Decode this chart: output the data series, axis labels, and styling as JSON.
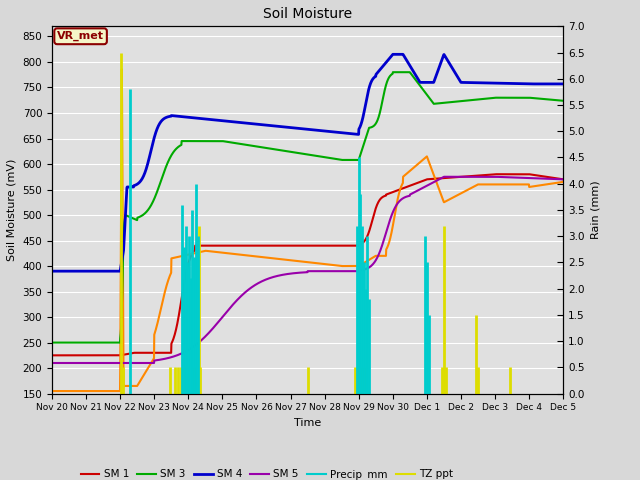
{
  "title": "Soil Moisture",
  "xlabel": "Time",
  "ylabel_left": "Soil Moisture (mV)",
  "ylabel_right": "Rain (mm)",
  "ylim_left": [
    150,
    870
  ],
  "ylim_right": [
    0.0,
    7.0
  ],
  "yticks_left": [
    150,
    200,
    250,
    300,
    350,
    400,
    450,
    500,
    550,
    600,
    650,
    700,
    750,
    800,
    850
  ],
  "yticks_right": [
    0.0,
    0.5,
    1.0,
    1.5,
    2.0,
    2.5,
    3.0,
    3.5,
    4.0,
    4.5,
    5.0,
    5.5,
    6.0,
    6.5,
    7.0
  ],
  "xtick_labels": [
    "Nov 20",
    "Nov 21",
    "Nov 22",
    "Nov 23",
    "Nov 24",
    "Nov 25",
    "Nov 26",
    "Nov 27",
    "Nov 28",
    "Nov 29",
    "Nov 30",
    "Dec 1",
    "Dec 2",
    "Dec 3",
    "Dec 4",
    "Dec 5"
  ],
  "colors": {
    "SM1": "#cc0000",
    "SM2": "#ff8800",
    "SM3": "#00aa00",
    "SM4": "#0000cc",
    "SM5": "#9900aa",
    "Precip": "#00cccc",
    "TZppt": "#dddd00"
  },
  "background_color": "#e0e0e0",
  "grid_color": "#ffffff",
  "fig_bg": "#d8d8d8",
  "annotation_box": "VR_met",
  "annotation_color": "#8b0000",
  "annotation_bg": "#f5f5c8"
}
